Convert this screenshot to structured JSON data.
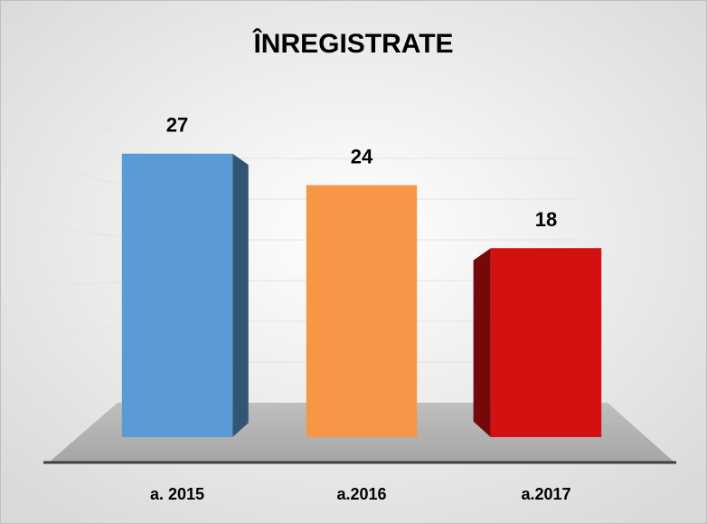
{
  "chart_data": {
    "type": "bar3d",
    "title": "ÎNREGISTRATE",
    "categories": [
      "a. 2015",
      "a.2016",
      "a.2017"
    ],
    "values": [
      27,
      24,
      18
    ],
    "colors": [
      "#5b9bd5",
      "#f79646",
      "#d41111"
    ],
    "ylim": [
      0,
      30
    ]
  }
}
